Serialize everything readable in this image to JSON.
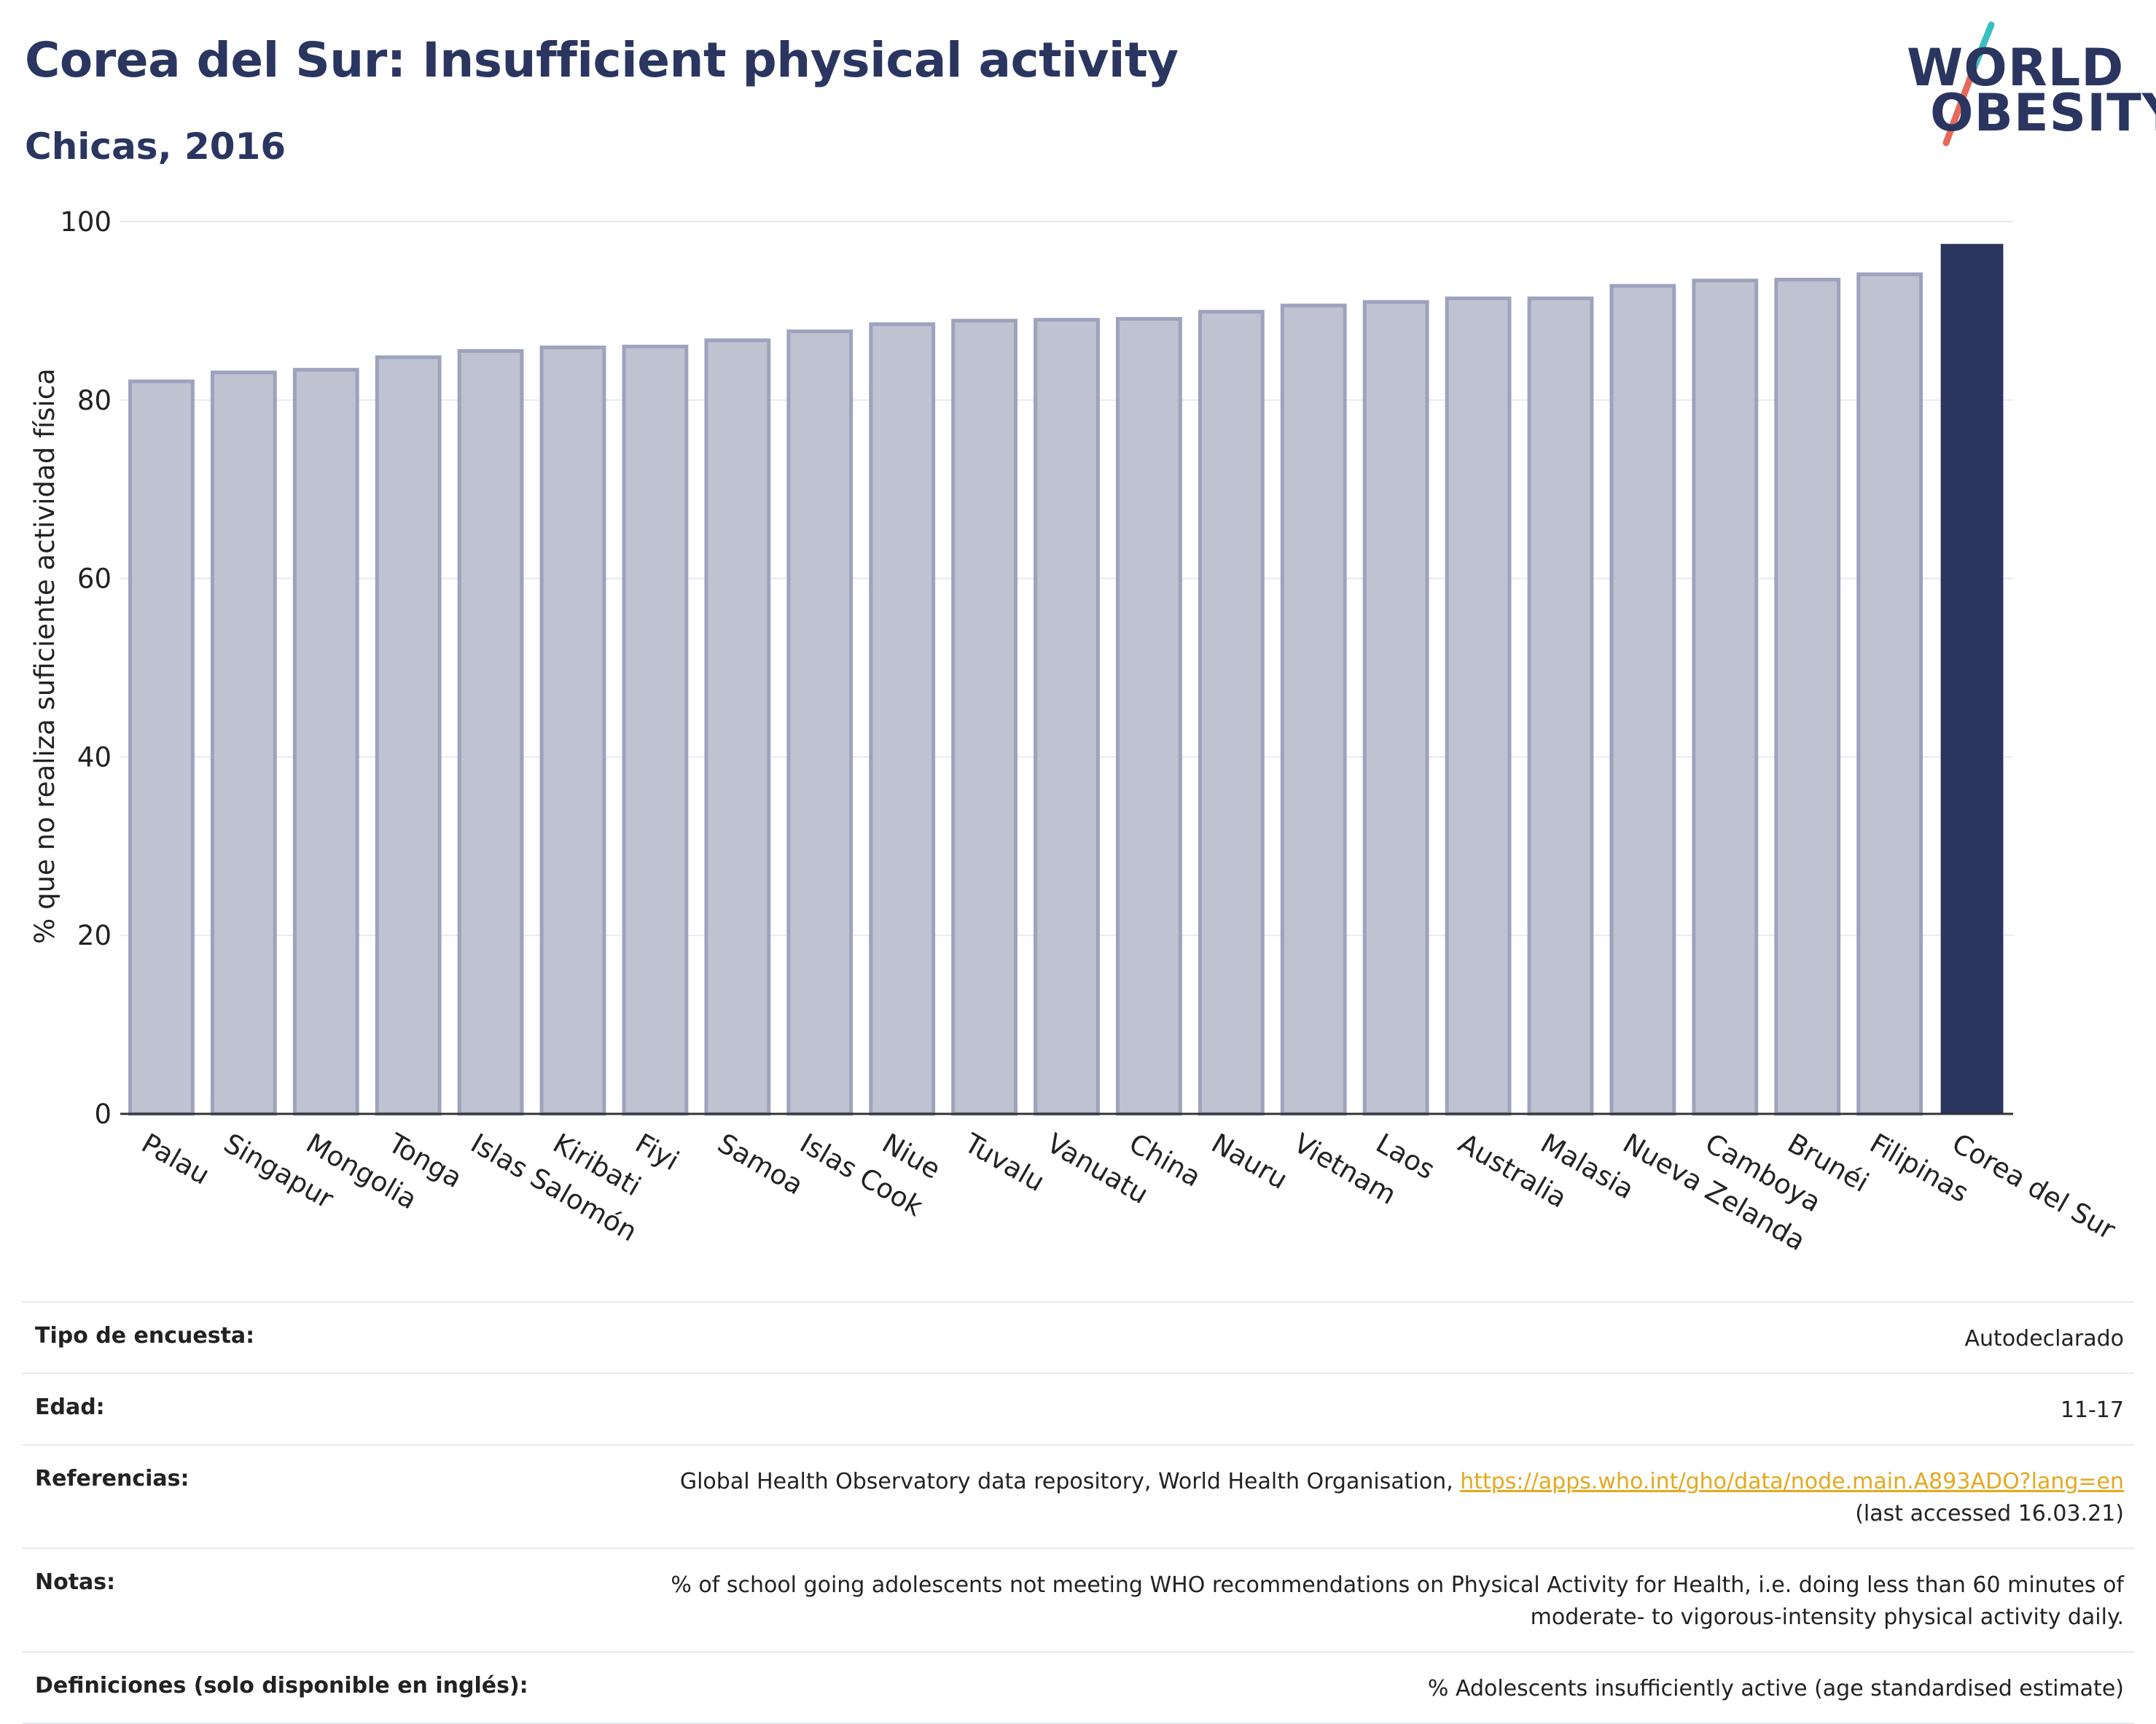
{
  "header": {
    "title": "Corea del Sur: Insufficient physical activity",
    "subtitle": "Chicas, 2016"
  },
  "logo": {
    "line1": "WORLD",
    "line2": "OBESITY",
    "colors": {
      "text": "#2a3560",
      "slash_top": "#3bbfbf",
      "slash_bottom": "#e5685a"
    }
  },
  "colors": {
    "bar_default_fill": "#bfc2d0",
    "bar_default_stroke": "#9da2bd",
    "bar_highlight": "#2a3560",
    "grid": "#e8eaf0",
    "axis": "#333333"
  },
  "chart_data": {
    "type": "bar",
    "title": "Corea del Sur: Insufficient physical activity",
    "subtitle": "Chicas, 2016",
    "xlabel": "",
    "ylabel": "% que no realiza suficiente actividad física",
    "ylim": [
      0,
      100
    ],
    "yticks": [
      0,
      20,
      40,
      60,
      80,
      100
    ],
    "grid": true,
    "highlight": "Corea del Sur",
    "categories": [
      "Palau",
      "Singapur",
      "Mongolia",
      "Tonga",
      "Islas Salomón",
      "Kiribati",
      "Fiyi",
      "Samoa",
      "Islas Cook",
      "Niue",
      "Tuvalu",
      "Vanuatu",
      "China",
      "Nauru",
      "Vietnam",
      "Laos",
      "Australia",
      "Malasia",
      "Nueva Zelanda",
      "Camboya",
      "Brunéi",
      "Filipinas",
      "Corea del Sur"
    ],
    "values": [
      82.1,
      83.1,
      83.4,
      84.8,
      85.5,
      85.9,
      86.0,
      86.7,
      87.7,
      88.5,
      88.9,
      89.0,
      89.1,
      89.9,
      90.6,
      91.0,
      91.4,
      91.4,
      92.8,
      93.4,
      93.5,
      94.1,
      97.5
    ]
  },
  "meta": [
    {
      "label": "Tipo de encuesta:",
      "value": "Autodeclarado"
    },
    {
      "label": "Edad:",
      "value": "11-17"
    },
    {
      "label": "Referencias:",
      "value_prefix": "Global Health Observatory data repository, World Health Organisation, ",
      "link": "https://apps.who.int/gho/data/node.main.A893ADO?lang=en",
      "value_suffix": "(last accessed 16.03.21)"
    },
    {
      "label": "Notas:",
      "value": "% of school going adolescents not meeting WHO recommendations on Physical Activity for Health, i.e. doing less than 60 minutes of moderate- to vigorous-intensity physical activity daily."
    },
    {
      "label": "Definiciones (solo disponible en inglés):",
      "value": "% Adolescents insufficiently active (age standardised estimate)"
    }
  ]
}
